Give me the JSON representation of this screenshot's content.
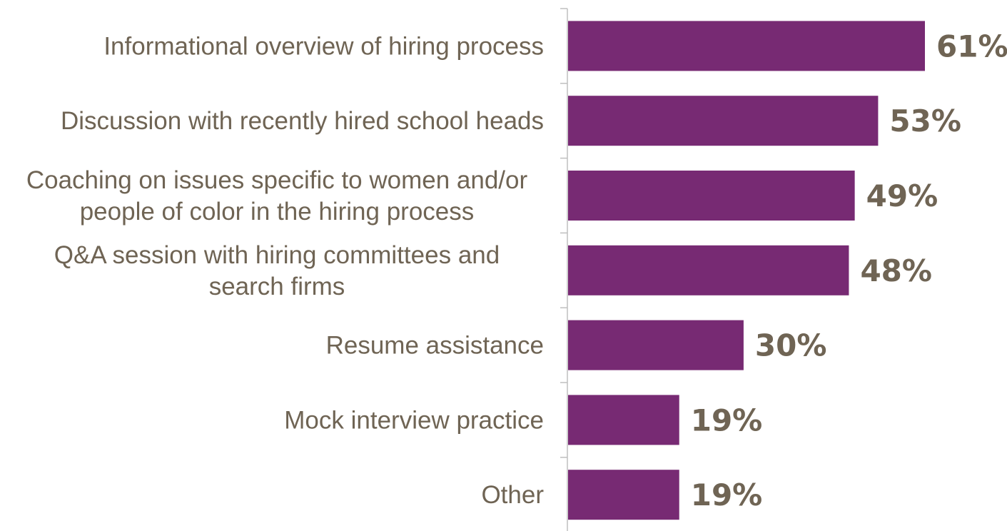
{
  "chart_data": {
    "type": "bar",
    "orientation": "horizontal",
    "categories": [
      [
        "Informational overview of hiring process"
      ],
      [
        "Discussion with recently hired school heads"
      ],
      [
        "Coaching on issues specific to women and/or",
        "people of color in the hiring process"
      ],
      [
        "Q&A session with hiring committees and",
        "search firms"
      ],
      [
        "Resume assistance"
      ],
      [
        "Mock interview practice"
      ],
      [
        "Other"
      ]
    ],
    "values": [
      61,
      53,
      49,
      48,
      30,
      19,
      19
    ],
    "value_labels": [
      "61%",
      "53%",
      "49%",
      "48%",
      "30%",
      "19%",
      "19%"
    ],
    "xlim": [
      0,
      61
    ],
    "grid": false,
    "legend": "none",
    "colors": {
      "bar": "#772a73",
      "text": "#6f6454",
      "axis": "#bfbfbf"
    }
  }
}
